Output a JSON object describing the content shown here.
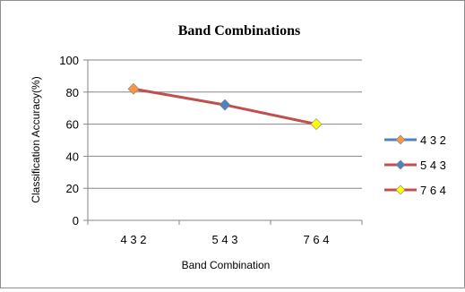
{
  "chart_data": {
    "type": "line",
    "title": "Band Combinations",
    "xlabel": "Band Combination",
    "ylabel": "Classification Accuracy(%)",
    "categories": [
      "4 3 2",
      "5 4 3",
      "7 6 4"
    ],
    "ylim": [
      0,
      100
    ],
    "yticks": [
      0,
      20,
      40,
      60,
      80,
      100
    ],
    "grid": "horizontal",
    "legend_position": "right",
    "line": {
      "values": [
        82,
        72,
        60
      ],
      "color": "#c0504d"
    },
    "points": [
      {
        "category": "4 3 2",
        "value": 82,
        "marker": "diamond",
        "color": "#f79646"
      },
      {
        "category": "5 4 3",
        "value": 72,
        "marker": "diamond",
        "color": "#4f81bd"
      },
      {
        "category": "7 6 4",
        "value": 60,
        "marker": "diamond",
        "color": "#ffff00"
      }
    ],
    "legend": [
      {
        "label": "4 3 2",
        "line_color": "#4f81bd",
        "marker_color": "#f79646"
      },
      {
        "label": "5 4 3",
        "line_color": "#c0504d",
        "marker_color": "#4f81bd"
      },
      {
        "label": "7 6 4",
        "line_color": "#c0504d",
        "marker_color": "#ffff00"
      }
    ]
  }
}
